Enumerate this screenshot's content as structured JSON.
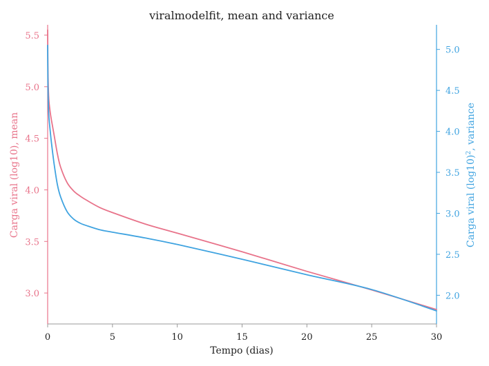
{
  "chart_data": {
    "type": "line",
    "title": "viralmodelfit, mean and variance",
    "xlabel": "Tempo (dias)",
    "ylabel_left": "Carga viral (log10), mean",
    "ylabel_right_base": "Carga viral (log10)",
    "ylabel_right_sup": "2",
    "ylabel_right_tail": ", variance",
    "xlim": [
      0,
      30
    ],
    "ylim_left": [
      2.7,
      5.6
    ],
    "ylim_right": [
      1.65,
      5.3
    ],
    "x_ticks": [
      0,
      5,
      10,
      15,
      20,
      25,
      30
    ],
    "y_left_ticks": [
      "3.0",
      "3.5",
      "4.0",
      "4.5",
      "5.0",
      "5.5"
    ],
    "y_right_ticks": [
      "2.0",
      "2.5",
      "3.0",
      "3.5",
      "4.0",
      "4.5",
      "5.0"
    ],
    "grid": false,
    "colors": {
      "left": "#e8738a",
      "right": "#3fa3e0",
      "axis": "#999999",
      "text": "#222222"
    },
    "series": [
      {
        "axis": "left",
        "x": [
          0,
          0.02,
          0.05,
          0.1,
          0.2,
          0.3,
          0.5,
          0.75,
          1.0,
          1.5,
          2.0,
          2.5,
          3.0,
          4.0,
          5.0,
          7.5,
          10,
          15,
          20,
          25,
          30
        ],
        "values": [
          5.55,
          5.2,
          5.0,
          4.86,
          4.75,
          4.67,
          4.53,
          4.35,
          4.22,
          4.07,
          3.99,
          3.94,
          3.9,
          3.83,
          3.78,
          3.67,
          3.58,
          3.4,
          3.21,
          3.03,
          2.84
        ]
      },
      {
        "axis": "right",
        "x": [
          0,
          0.02,
          0.05,
          0.1,
          0.2,
          0.3,
          0.5,
          0.75,
          1.0,
          1.5,
          2.0,
          2.5,
          3.0,
          4.0,
          5.0,
          7.5,
          10,
          15,
          20,
          25,
          30
        ],
        "values": [
          5.05,
          4.6,
          4.35,
          4.17,
          4.0,
          3.85,
          3.6,
          3.35,
          3.2,
          3.02,
          2.93,
          2.88,
          2.85,
          2.8,
          2.77,
          2.7,
          2.62,
          2.44,
          2.25,
          2.07,
          1.81
        ]
      }
    ]
  }
}
